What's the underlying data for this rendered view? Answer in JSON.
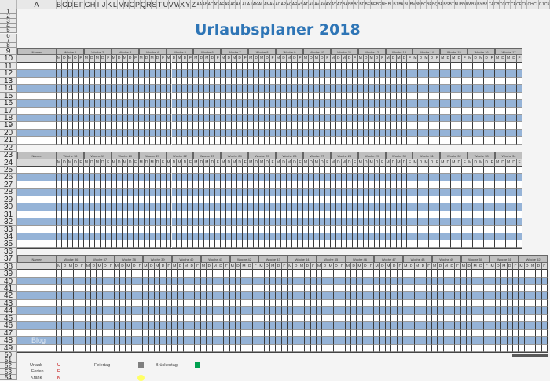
{
  "sheet": {
    "title": "Urlaubsplaner 2018",
    "column_letters": "A B C D E F G H I J K L M N O P Q R S T U V W X Y Z AA AB AC AD AE AF AG AH AI AJ AK AL AM AN AO AP AQ AR AS AT AU AV AW AX AY AZ BA BB BC BD BE BF BG BH BI BJ BK BL BM BN BO BP BQ BR BS BT BU BV BW BX BY BZ CA CB CC CD CE CF CG CH CI CJ CK",
    "row_count": 54,
    "names_label": "Namen",
    "week_prefix": "Woche",
    "day_letters": [
      "M",
      "D",
      "M",
      "D",
      "F"
    ],
    "blocks": [
      {
        "weeks": [
          1,
          2,
          3,
          4,
          5,
          6,
          7,
          8,
          9,
          10,
          11,
          12,
          13,
          14,
          15,
          16,
          17
        ]
      },
      {
        "weeks": [
          18,
          19,
          20,
          21,
          22,
          23,
          24,
          25,
          26,
          27,
          28,
          29,
          30,
          31,
          32,
          33,
          34
        ]
      },
      {
        "weeks": [
          36,
          37,
          38,
          39,
          40,
          41,
          42,
          43,
          44,
          45,
          46,
          47,
          48,
          49,
          50,
          51,
          52
        ]
      }
    ],
    "watermark": "Blog"
  },
  "legend": {
    "urlaub": {
      "label": "Urlaub",
      "code": "U"
    },
    "ferien": {
      "label": "Ferien",
      "code": "F"
    },
    "krank": {
      "label": "Krank",
      "code": "K"
    },
    "feiertag": {
      "label": "Feiertag"
    },
    "brueckentag": {
      "label": "Brückentag"
    }
  },
  "colors": {
    "title": "#2e75b6",
    "row_blue": "#95b3d7",
    "header_gray": "#bfbfbf",
    "code_red": "#c00000",
    "feiertag": "#7f7f7f",
    "brueckentag": "#00a050",
    "comment": "#ffff66"
  }
}
